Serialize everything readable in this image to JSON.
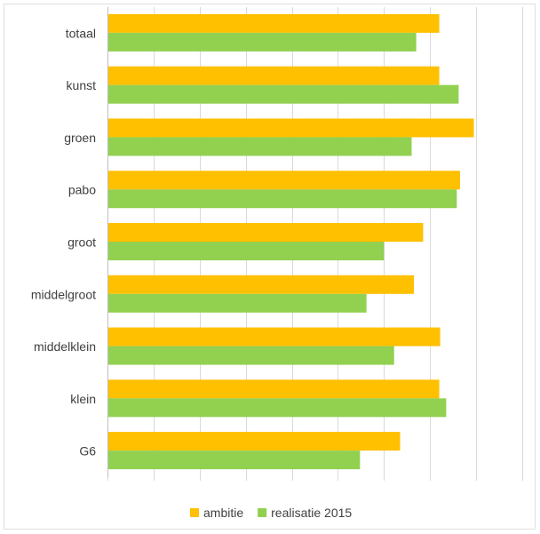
{
  "chart_data": {
    "type": "bar",
    "orientation": "horizontal",
    "categories": [
      "totaal",
      "kunst",
      "groen",
      "pabo",
      "groot",
      "middelgroot",
      "middelklein",
      "klein",
      "G6"
    ],
    "series": [
      {
        "name": "ambitie",
        "color": "#FFC000",
        "values": [
          7.2,
          7.2,
          7.95,
          7.65,
          6.85,
          6.65,
          7.22,
          7.2,
          6.35
        ]
      },
      {
        "name": "realisatie 2015",
        "color": "#92D050",
        "values": [
          6.7,
          7.62,
          6.6,
          7.58,
          6.0,
          5.62,
          6.22,
          7.35,
          5.48
        ]
      }
    ],
    "xlim": [
      0,
      9
    ],
    "grid": true,
    "legend_position": "bottom",
    "title": "",
    "xlabel": "",
    "ylabel": ""
  }
}
